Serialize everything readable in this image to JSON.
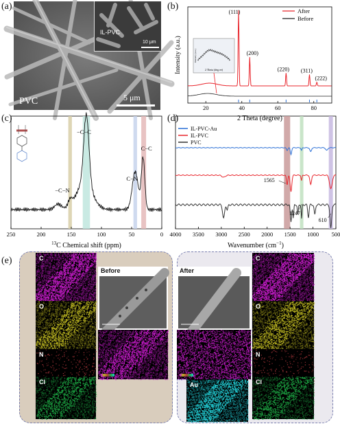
{
  "panel_labels": {
    "a": "(a)",
    "b": "(b)",
    "c": "(c)",
    "d": "(d)",
    "e": "(e)"
  },
  "panel_a": {
    "main_caption": "PVC",
    "scale_main": "5 μm",
    "inset_caption": "IL-PVC",
    "scale_inset": "10 μm"
  },
  "chart_data": [
    {
      "id": "b",
      "type": "line",
      "xlabel": "2 Theta (degree)",
      "ylabel": "Intensity (a.u.)",
      "xlim": [
        10,
        90
      ],
      "xticks": [
        20,
        40,
        60,
        80
      ],
      "series": [
        {
          "name": "After",
          "color": "#e8242b"
        },
        {
          "name": "Before",
          "color": "#222222"
        }
      ],
      "peaks": [
        {
          "label": "(111)",
          "x": 38.2,
          "y": 1.0
        },
        {
          "label": "(200)",
          "x": 44.4,
          "y": 0.38
        },
        {
          "label": "(220)",
          "x": 64.6,
          "y": 0.17
        },
        {
          "label": "(311)",
          "x": 77.6,
          "y": 0.15
        },
        {
          "label": "(222)",
          "x": 81.7,
          "y": 0.05
        }
      ],
      "reference_ticks": [
        38.2,
        44.4,
        64.6,
        77.6,
        81.7
      ],
      "inset": {
        "xlabel": "2 Theta (deg ee)",
        "ylabel": "Intensity (a.u.)"
      }
    },
    {
      "id": "c",
      "type": "line",
      "xlabel": "13C Chemical shift (ppm)",
      "xlabel_sup": "13",
      "xlabel_rest": "C Chemical shift (ppm)",
      "xlim": [
        250,
        0
      ],
      "xticks": [
        250,
        200,
        150,
        100,
        50,
        0
      ],
      "annotations": [
        {
          "text": "−C−C",
          "x": 125
        },
        {
          "text": "C−N",
          "x": 45
        },
        {
          "text": "C−C",
          "x": 30
        },
        {
          "text": "−C−N",
          "x": 152
        }
      ],
      "bands": [
        {
          "x": 152,
          "width": 6,
          "color": "#d8cfa8"
        },
        {
          "x": 125,
          "width": 12,
          "color": "#bfe6de"
        },
        {
          "x": 44,
          "width": 6,
          "color": "#c7d3ec"
        },
        {
          "x": 30,
          "width": 8,
          "color": "#e4b9b9"
        }
      ]
    },
    {
      "id": "d",
      "type": "line",
      "xlabel": "Wavenumber (cm−1)",
      "xlabel_main": "Wavenumber (cm",
      "xlabel_sup": "−1",
      "xlabel_end": ")",
      "xlim": [
        4000,
        500
      ],
      "xticks": [
        4000,
        3500,
        3000,
        2500,
        2000,
        1500,
        1000,
        500
      ],
      "series": [
        {
          "name": "IL-PVC-Au",
          "color": "#2a6fd6"
        },
        {
          "name": "IL-PVC",
          "color": "#e8242b"
        },
        {
          "name": "PVC",
          "color": "#333333"
        }
      ],
      "annotations": [
        {
          "text": "1565",
          "x": 1565
        },
        {
          "text": "1247",
          "x": 1247
        },
        {
          "text": "610",
          "x": 610
        }
      ],
      "bands": [
        {
          "x": 1565,
          "color": "#c99a9a"
        },
        {
          "x": 1247,
          "color": "#bfe1bf"
        },
        {
          "x": 610,
          "color": "#c7b9e0"
        }
      ]
    }
  ],
  "panel_e": {
    "before_title": "Before",
    "after_title": "After",
    "left_maps": [
      "C",
      "O",
      "N",
      "Cl"
    ],
    "right_maps": [
      "C",
      "O",
      "N",
      "Cl"
    ],
    "center_map": "Au",
    "colors": {
      "C": "#c01bc4",
      "O": "#b7b120",
      "N": "#b0373c",
      "Cl": "#1da844",
      "Au": "#22c8cf"
    }
  }
}
